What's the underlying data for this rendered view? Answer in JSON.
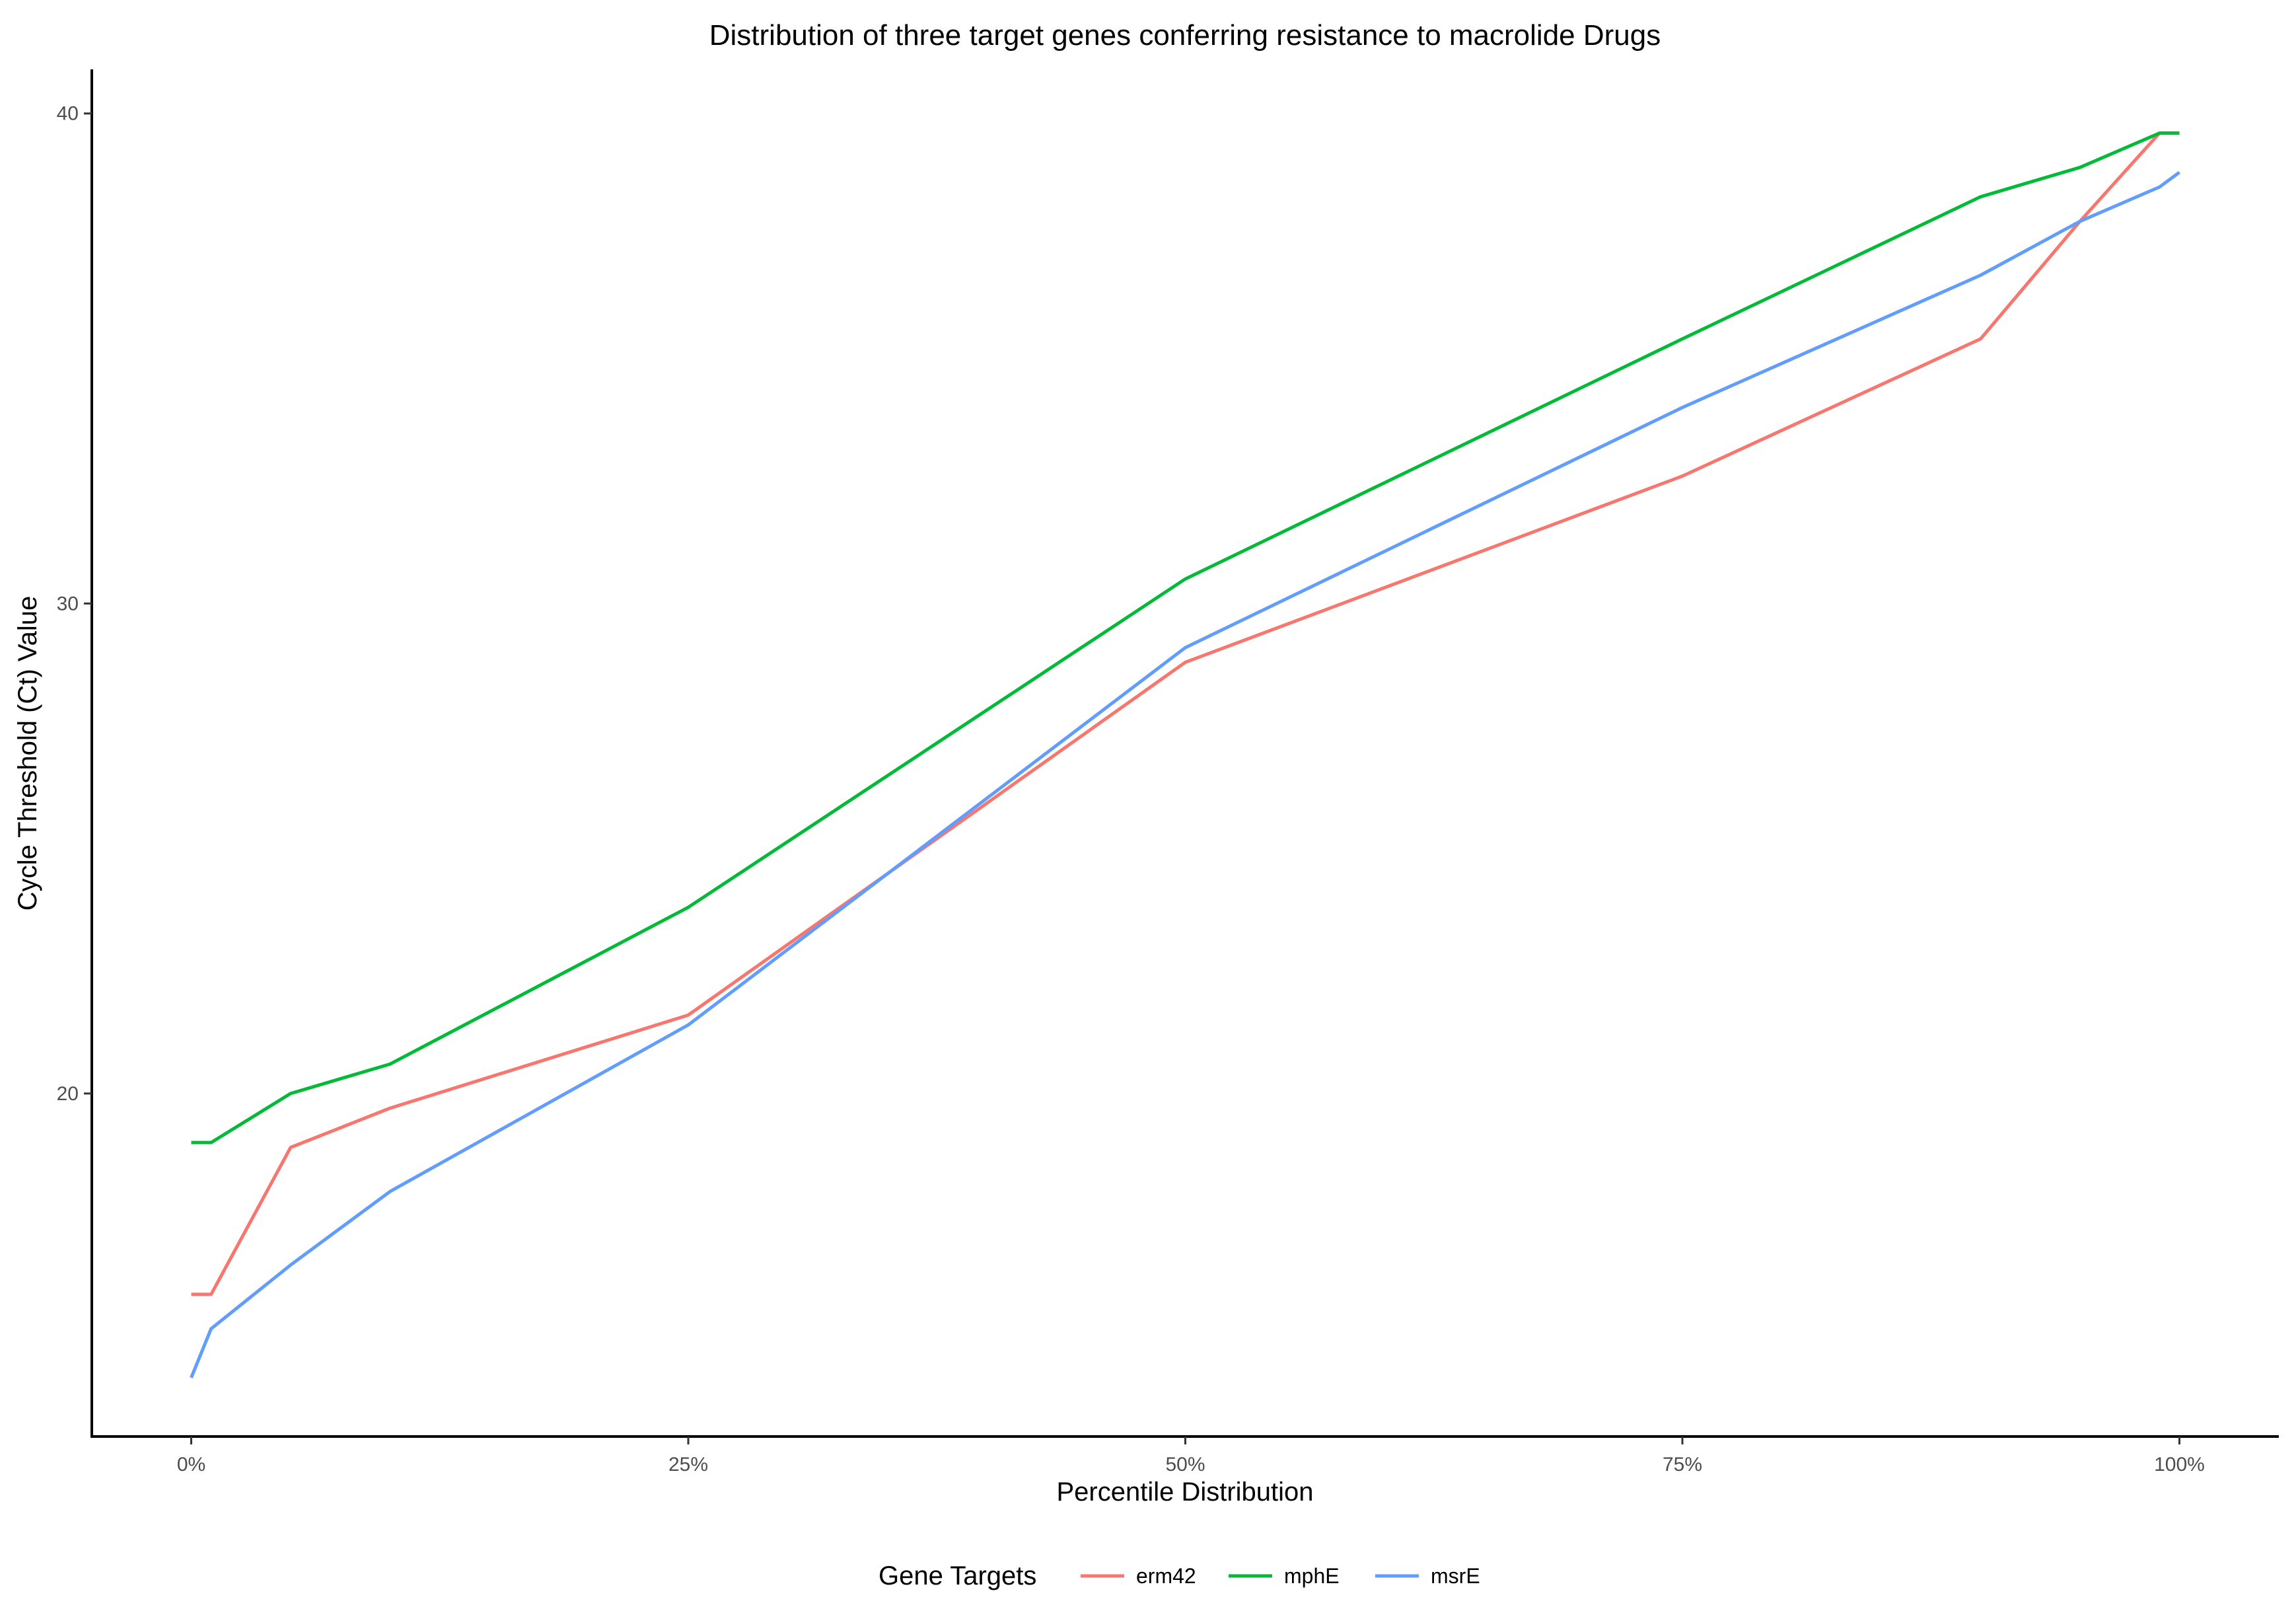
{
  "chart_data": {
    "type": "line",
    "title": "Distribution of three target genes conferring resistance to macrolide Drugs",
    "xlabel": "Percentile Distribution",
    "ylabel": "Cycle Threshold (Ct) Value",
    "x": [
      0,
      1,
      5,
      10,
      25,
      50,
      75,
      90,
      95,
      99,
      100
    ],
    "x_ticks": [
      0,
      25,
      50,
      75,
      100
    ],
    "x_tick_labels": [
      "0%",
      "25%",
      "50%",
      "75%",
      "100%"
    ],
    "y_ticks": [
      20,
      30,
      40
    ],
    "y_tick_labels": [
      "20",
      "30",
      "40"
    ],
    "xlim": [
      -5,
      105
    ],
    "ylim": [
      13.0,
      40.9
    ],
    "grid": false,
    "legend": {
      "title": "Gene Targets",
      "position": "bottom"
    },
    "series": [
      {
        "name": "erm42",
        "color": "#F8766D",
        "values": [
          15.9,
          15.9,
          18.9,
          19.7,
          21.6,
          28.8,
          32.6,
          35.4,
          37.8,
          39.6,
          39.6
        ]
      },
      {
        "name": "mphE",
        "color": "#00BA38",
        "values": [
          19.0,
          19.0,
          20.0,
          20.6,
          23.8,
          30.5,
          35.4,
          38.3,
          38.9,
          39.6,
          39.6
        ]
      },
      {
        "name": "msrE",
        "color": "#619CFF",
        "values": [
          14.2,
          15.2,
          16.5,
          18.0,
          21.4,
          29.1,
          34.0,
          36.7,
          37.8,
          38.5,
          38.8
        ]
      }
    ]
  }
}
